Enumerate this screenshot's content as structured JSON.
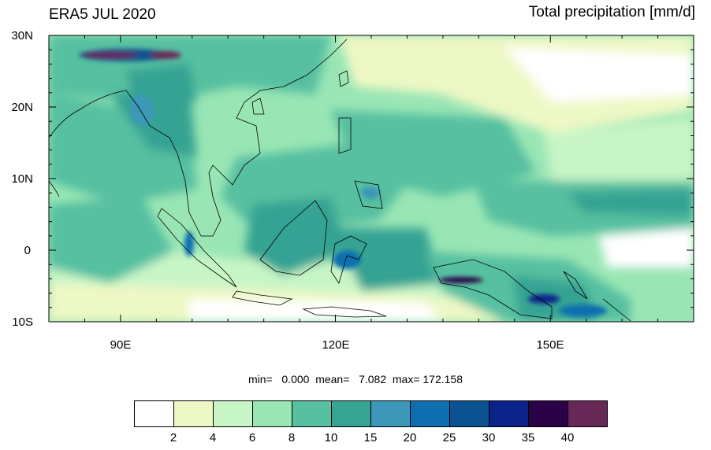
{
  "header": {
    "left_title": "ERA5 JUL 2020",
    "right_title": "Total precipitation [mm/d]"
  },
  "map": {
    "lat_labels": [
      "30N",
      "20N",
      "10N",
      "0",
      "10S"
    ],
    "lon_labels": [
      "90E",
      "120E",
      "150E"
    ],
    "lat_range": [
      -10,
      30
    ],
    "lon_range": [
      80,
      170
    ]
  },
  "stats": {
    "text": "min=   0.000  mean=   7.082  max= 172.158"
  },
  "colorbar": {
    "colors": [
      "#ffffff",
      "#edf8c5",
      "#c8f5c6",
      "#99e6b4",
      "#57c0a0",
      "#36a393",
      "#3c97b8",
      "#0d6fb0",
      "#0a5290",
      "#0b2389",
      "#2b0246",
      "#672757"
    ],
    "labels": [
      "2",
      "4",
      "6",
      "8",
      "10",
      "15",
      "20",
      "25",
      "30",
      "35",
      "40"
    ]
  }
}
